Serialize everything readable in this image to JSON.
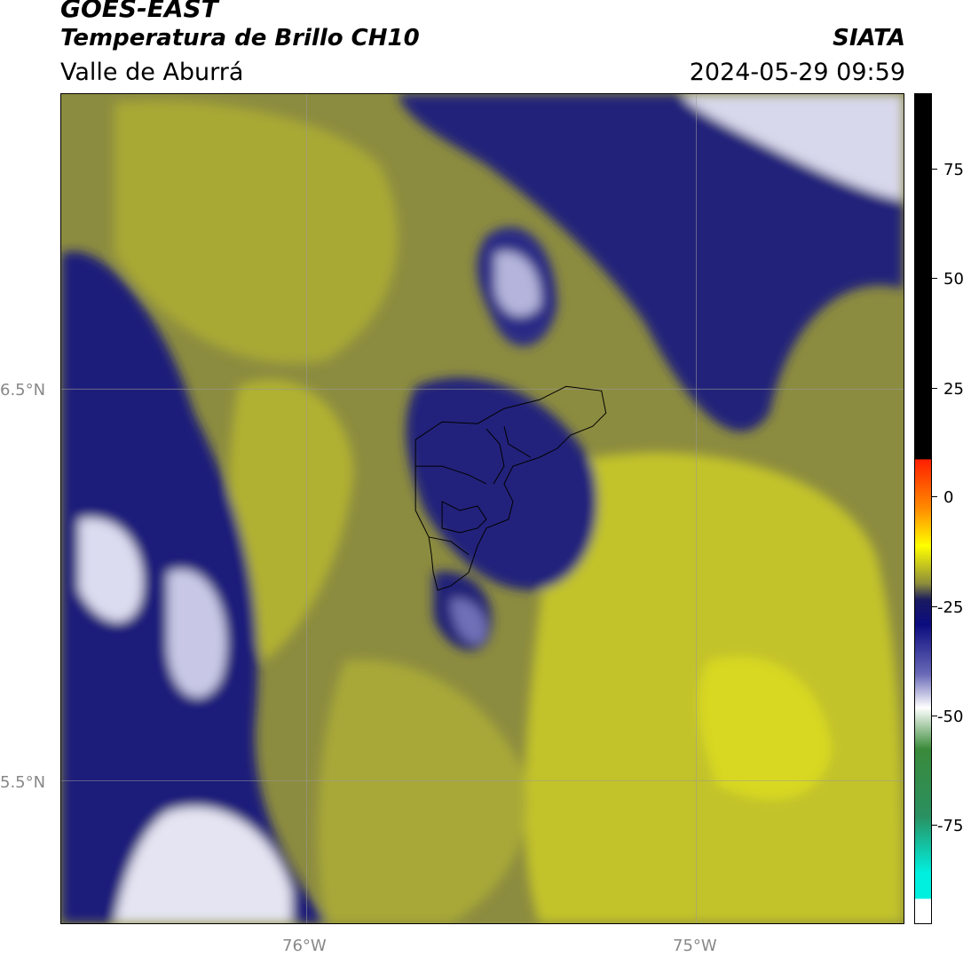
{
  "header": {
    "satellite": "GOES-EAST",
    "product": "Temperatura de Brillo CH10",
    "region": "Valle de Aburrá",
    "brand": "SIATA",
    "datetime": "2024-05-29 09:59"
  },
  "map": {
    "lat_labels": [
      "6.5°N",
      "5.5°N"
    ],
    "lon_labels": [
      "76°W",
      "75°W"
    ],
    "gridlines": true
  },
  "colorbar": {
    "tick_labels": [
      "75",
      "50",
      "25",
      "0",
      "-25",
      "-50",
      "-75"
    ],
    "colors": {
      "black": "#000000",
      "red": "#ff2000",
      "orange": "#ff8c00",
      "yellow": "#ffff00",
      "olive": "#8e8e3a",
      "navy": "#0c0c80",
      "white": "#ffffff",
      "green": "#3a8a3a",
      "cyan": "#00f0e0"
    }
  }
}
